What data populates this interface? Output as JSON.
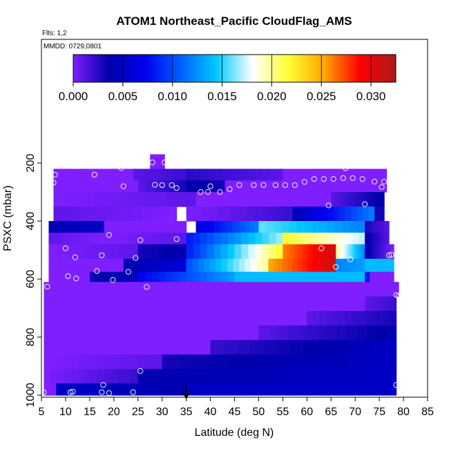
{
  "chart_data": {
    "type": "heatmap",
    "title": "ATOM1 Northeast_Pacific CloudFlag_AMS",
    "subtitle_flights": "Flts: 1,2",
    "subtitle_dates": "MMDD: 0729,0801",
    "xlabel": "Latitude (deg N)",
    "ylabel": "PSXC (mbar)",
    "xlim": [
      5,
      85
    ],
    "ylim": [
      1000,
      0
    ],
    "x_ticks": [
      5,
      10,
      15,
      20,
      25,
      30,
      35,
      40,
      45,
      50,
      55,
      60,
      65,
      70,
      75,
      80,
      85
    ],
    "y_ticks": [
      200,
      400,
      600,
      800,
      1000
    ],
    "colorbar": {
      "min": 0.0,
      "max": 0.0325,
      "ticks": [
        0.0,
        0.005,
        0.01,
        0.015,
        0.02,
        0.025,
        0.03
      ],
      "tick_labels": [
        "0.000",
        "0.005",
        "0.010",
        "0.015",
        "0.020",
        "0.025",
        "0.030"
      ],
      "stops": [
        "#7f1fff",
        "#0000aa",
        "#0000ee",
        "#0060ff",
        "#00c8ff",
        "#ffffff",
        "#ffff33",
        "#ffa500",
        "#ff0000",
        "#aa1a1a"
      ]
    },
    "marker_latitude": 35,
    "background_value": 0.0,
    "layers": [
      {
        "p_top": 170,
        "p_bot": 220,
        "segments": [
          {
            "lat0": 27.5,
            "lat1": 30.5,
            "v0": 0.0,
            "v1": 0.0
          }
        ]
      },
      {
        "p_top": 220,
        "p_bot": 260,
        "segments": [
          {
            "lat0": 7.5,
            "lat1": 24,
            "v0": 0.0,
            "v1": 0.0
          },
          {
            "lat0": 24,
            "lat1": 35,
            "v0": 0.001,
            "v1": 0.002
          },
          {
            "lat0": 35,
            "lat1": 55,
            "v0": 0.0025,
            "v1": 0.001
          },
          {
            "lat0": 55,
            "lat1": 76.5,
            "v0": 0.0,
            "v1": 0.0
          }
        ]
      },
      {
        "p_top": 260,
        "p_bot": 300,
        "segments": [
          {
            "lat0": 7.5,
            "lat1": 25,
            "v0": 0.0,
            "v1": 0.0
          },
          {
            "lat0": 25,
            "lat1": 35,
            "v0": 0.001,
            "v1": 0.003
          },
          {
            "lat0": 35,
            "lat1": 43,
            "v0": 0.004,
            "v1": 0.003
          },
          {
            "lat0": 43,
            "lat1": 76.5,
            "v0": 0.0,
            "v1": 0.0
          }
        ]
      },
      {
        "p_top": 300,
        "p_bot": 350,
        "segments": [
          {
            "lat0": 7.5,
            "lat1": 37,
            "v0": 0.0,
            "v1": 0.001
          },
          {
            "lat0": 37,
            "lat1": 45,
            "v0": 0.0,
            "v1": 0.0
          },
          {
            "lat0": 45,
            "lat1": 65,
            "v0": 0.0,
            "v1": 0.0
          },
          {
            "lat0": 65,
            "lat1": 76,
            "v0": 0.001,
            "v1": 0.004
          }
        ]
      },
      {
        "p_top": 350,
        "p_bot": 400,
        "segments": [
          {
            "lat0": 7.5,
            "lat1": 33,
            "v0": 0.001,
            "v1": 0.0
          },
          {
            "lat0": 35,
            "lat1": 57,
            "v0": 0.0,
            "v1": 0.002
          },
          {
            "lat0": 57,
            "lat1": 74,
            "v0": 0.004,
            "v1": 0.012
          },
          {
            "lat0": 74,
            "lat1": 76,
            "v0": 0.003,
            "v1": 0.003
          }
        ]
      },
      {
        "p_top": 400,
        "p_bot": 440,
        "segments": [
          {
            "lat0": 6.5,
            "lat1": 18,
            "v0": 0.004,
            "v1": 0.005
          },
          {
            "lat0": 18,
            "lat1": 35,
            "v0": 0.0,
            "v1": 0.0
          },
          {
            "lat0": 37,
            "lat1": 50,
            "v0": 0.006,
            "v1": 0.012
          },
          {
            "lat0": 50,
            "lat1": 72,
            "v0": 0.016,
            "v1": 0.012
          },
          {
            "lat0": 72,
            "lat1": 77,
            "v0": 0.003,
            "v1": 0.001
          }
        ]
      },
      {
        "p_top": 440,
        "p_bot": 480,
        "segments": [
          {
            "lat0": 6.5,
            "lat1": 18,
            "v0": 0.001,
            "v1": 0.0
          },
          {
            "lat0": 18,
            "lat1": 35,
            "v0": 0.0,
            "v1": 0.001
          },
          {
            "lat0": 35,
            "lat1": 55,
            "v0": 0.008,
            "v1": 0.017
          },
          {
            "lat0": 55,
            "lat1": 72,
            "v0": 0.022,
            "v1": 0.017
          },
          {
            "lat0": 72,
            "lat1": 77,
            "v0": 0.004,
            "v1": 0.001
          }
        ]
      },
      {
        "p_top": 480,
        "p_bot": 530,
        "segments": [
          {
            "lat0": 6.5,
            "lat1": 25,
            "v0": 0.0,
            "v1": 0.001
          },
          {
            "lat0": 25,
            "lat1": 35,
            "v0": 0.003,
            "v1": 0.004
          },
          {
            "lat0": 35,
            "lat1": 55,
            "v0": 0.008,
            "v1": 0.022
          },
          {
            "lat0": 55,
            "lat1": 66,
            "v0": 0.026,
            "v1": 0.031
          },
          {
            "lat0": 66,
            "lat1": 72,
            "v0": 0.02,
            "v1": 0.012
          },
          {
            "lat0": 72,
            "lat1": 78,
            "v0": 0.004,
            "v1": 0.0
          }
        ]
      },
      {
        "p_top": 530,
        "p_bot": 575,
        "segments": [
          {
            "lat0": 6.5,
            "lat1": 22,
            "v0": 0.0,
            "v1": 0.0
          },
          {
            "lat0": 22,
            "lat1": 35,
            "v0": 0.004,
            "v1": 0.006
          },
          {
            "lat0": 35,
            "lat1": 52,
            "v0": 0.01,
            "v1": 0.02
          },
          {
            "lat0": 52,
            "lat1": 66,
            "v0": 0.025,
            "v1": 0.031
          },
          {
            "lat0": 66,
            "lat1": 72,
            "v0": 0.012,
            "v1": 0.013
          },
          {
            "lat0": 72,
            "lat1": 78,
            "v0": 0.014,
            "v1": 0.014
          }
        ]
      },
      {
        "p_top": 575,
        "p_bot": 610,
        "segments": [
          {
            "lat0": 6.5,
            "lat1": 15,
            "v0": 0.0,
            "v1": 0.0
          },
          {
            "lat0": 15,
            "lat1": 25,
            "v0": 0.003,
            "v1": 0.005
          },
          {
            "lat0": 25,
            "lat1": 45,
            "v0": 0.007,
            "v1": 0.013
          },
          {
            "lat0": 45,
            "lat1": 72,
            "v0": 0.014,
            "v1": 0.014
          },
          {
            "lat0": 72,
            "lat1": 73,
            "v0": 0.008,
            "v1": 0.008
          },
          {
            "lat0": 73,
            "lat1": 78,
            "v0": 0.0,
            "v1": 0.0
          }
        ]
      },
      {
        "p_top": 610,
        "p_bot": 660,
        "segments": [
          {
            "lat0": 5.5,
            "lat1": 72,
            "v0": 0.0,
            "v1": 0.0
          },
          {
            "lat0": 72,
            "lat1": 79,
            "v0": 0.0,
            "v1": 0.0
          }
        ]
      },
      {
        "p_top": 660,
        "p_bot": 710,
        "segments": [
          {
            "lat0": 5.5,
            "lat1": 72,
            "v0": 0.0,
            "v1": 0.0
          },
          {
            "lat0": 72,
            "lat1": 78.5,
            "v0": 0.001,
            "v1": 0.002
          }
        ]
      },
      {
        "p_top": 710,
        "p_bot": 760,
        "segments": [
          {
            "lat0": 5.5,
            "lat1": 60,
            "v0": 0.0,
            "v1": 0.0
          },
          {
            "lat0": 60,
            "lat1": 78.5,
            "v0": 0.001,
            "v1": 0.003
          }
        ]
      },
      {
        "p_top": 760,
        "p_bot": 810,
        "segments": [
          {
            "lat0": 5.5,
            "lat1": 50,
            "v0": 0.0,
            "v1": 0.0
          },
          {
            "lat0": 50,
            "lat1": 78.5,
            "v0": 0.001,
            "v1": 0.004
          }
        ]
      },
      {
        "p_top": 810,
        "p_bot": 860,
        "segments": [
          {
            "lat0": 5.5,
            "lat1": 40,
            "v0": 0.0,
            "v1": 0.0
          },
          {
            "lat0": 40,
            "lat1": 78.5,
            "v0": 0.002,
            "v1": 0.005
          }
        ]
      },
      {
        "p_top": 860,
        "p_bot": 910,
        "segments": [
          {
            "lat0": 5.5,
            "lat1": 30,
            "v0": 0.0,
            "v1": 0.001
          },
          {
            "lat0": 30,
            "lat1": 78.5,
            "v0": 0.003,
            "v1": 0.005
          }
        ]
      },
      {
        "p_top": 910,
        "p_bot": 960,
        "segments": [
          {
            "lat0": 5.5,
            "lat1": 25,
            "v0": 0.0,
            "v1": 0.002
          },
          {
            "lat0": 25,
            "lat1": 78.5,
            "v0": 0.004,
            "v1": 0.005
          }
        ]
      },
      {
        "p_top": 960,
        "p_bot": 1000,
        "segments": [
          {
            "lat0": 5.5,
            "lat1": 8,
            "v0": 0.0,
            "v1": 0.0
          },
          {
            "lat0": 8,
            "lat1": 35,
            "v0": 0.005,
            "v1": 0.004
          },
          {
            "lat0": 35,
            "lat1": 78.5,
            "v0": 0.005,
            "v1": 0.005
          }
        ]
      }
    ],
    "points": [
      {
        "lat": 7.8,
        "p": 240
      },
      {
        "lat": 7.5,
        "p": 268
      },
      {
        "lat": 16,
        "p": 240
      },
      {
        "lat": 21.5,
        "p": 217
      },
      {
        "lat": 22,
        "p": 280
      },
      {
        "lat": 28,
        "p": 198
      },
      {
        "lat": 30.5,
        "p": 198
      },
      {
        "lat": 28.5,
        "p": 275
      },
      {
        "lat": 30,
        "p": 276
      },
      {
        "lat": 32,
        "p": 276
      },
      {
        "lat": 33,
        "p": 286
      },
      {
        "lat": 38,
        "p": 300
      },
      {
        "lat": 39.5,
        "p": 300
      },
      {
        "lat": 40,
        "p": 280
      },
      {
        "lat": 42,
        "p": 300
      },
      {
        "lat": 44,
        "p": 290
      },
      {
        "lat": 46,
        "p": 276
      },
      {
        "lat": 49,
        "p": 276
      },
      {
        "lat": 51,
        "p": 276
      },
      {
        "lat": 53.5,
        "p": 276
      },
      {
        "lat": 55.5,
        "p": 276
      },
      {
        "lat": 57.5,
        "p": 276
      },
      {
        "lat": 59.5,
        "p": 265
      },
      {
        "lat": 61.5,
        "p": 255
      },
      {
        "lat": 63.5,
        "p": 255
      },
      {
        "lat": 65.5,
        "p": 255
      },
      {
        "lat": 67.5,
        "p": 252
      },
      {
        "lat": 68,
        "p": 218
      },
      {
        "lat": 69.5,
        "p": 252
      },
      {
        "lat": 71.5,
        "p": 255
      },
      {
        "lat": 74,
        "p": 264
      },
      {
        "lat": 76,
        "p": 264
      },
      {
        "lat": 75.5,
        "p": 283
      },
      {
        "lat": 64.5,
        "p": 346
      },
      {
        "lat": 72,
        "p": 342
      },
      {
        "lat": 19,
        "p": 448
      },
      {
        "lat": 25.5,
        "p": 466
      },
      {
        "lat": 33,
        "p": 462
      },
      {
        "lat": 10,
        "p": 494
      },
      {
        "lat": 5.8,
        "p": 515
      },
      {
        "lat": 12,
        "p": 525
      },
      {
        "lat": 17.5,
        "p": 518
      },
      {
        "lat": 24.5,
        "p": 527
      },
      {
        "lat": 63,
        "p": 494
      },
      {
        "lat": 66,
        "p": 558
      },
      {
        "lat": 69,
        "p": 532
      },
      {
        "lat": 77.5,
        "p": 516
      },
      {
        "lat": 77,
        "p": 518
      },
      {
        "lat": 16.5,
        "p": 572
      },
      {
        "lat": 23,
        "p": 575
      },
      {
        "lat": 10.5,
        "p": 590
      },
      {
        "lat": 12.2,
        "p": 598
      },
      {
        "lat": 19.8,
        "p": 603
      },
      {
        "lat": 6.2,
        "p": 626
      },
      {
        "lat": 26.8,
        "p": 627
      },
      {
        "lat": 78.5,
        "p": 655
      },
      {
        "lat": 79,
        "p": 658
      },
      {
        "lat": 25.5,
        "p": 917
      },
      {
        "lat": 17.8,
        "p": 965
      },
      {
        "lat": 78.5,
        "p": 965
      },
      {
        "lat": 5.5,
        "p": 990
      },
      {
        "lat": 11,
        "p": 990
      },
      {
        "lat": 11.5,
        "p": 988
      },
      {
        "lat": 17.5,
        "p": 990
      },
      {
        "lat": 19,
        "p": 993
      },
      {
        "lat": 24,
        "p": 990
      }
    ]
  }
}
